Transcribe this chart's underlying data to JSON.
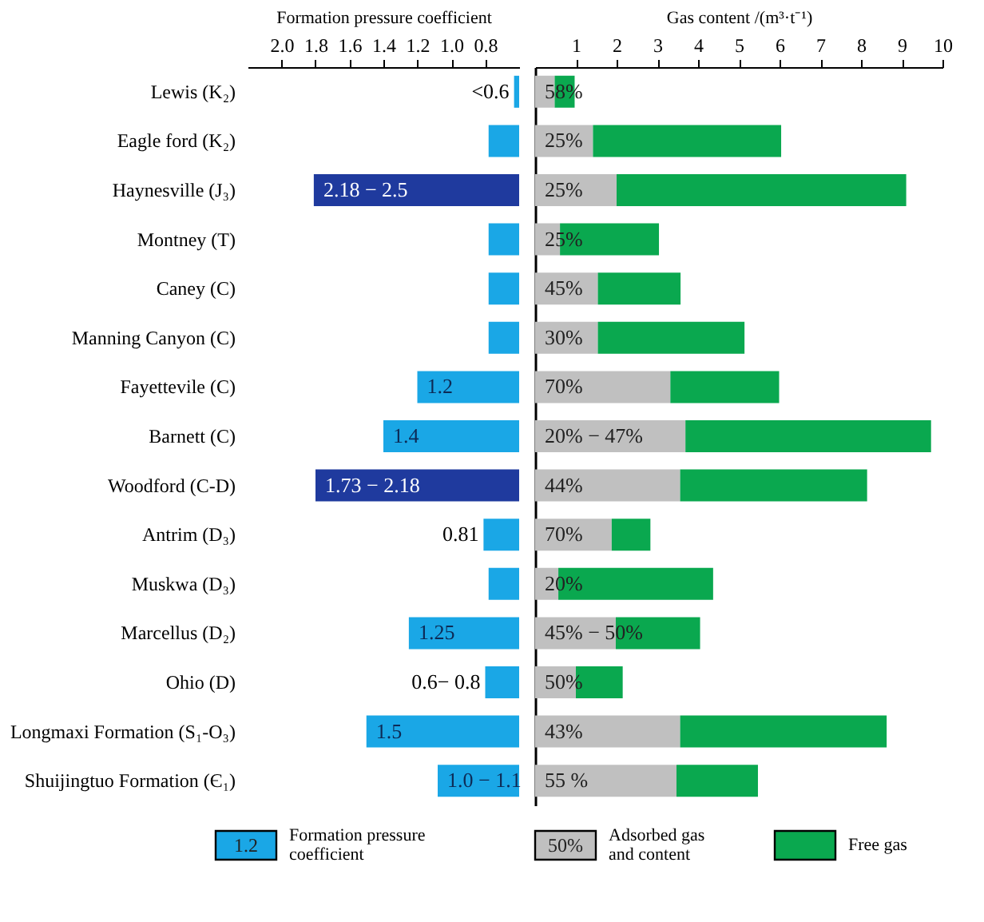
{
  "chart_data": [
    {
      "type": "bar",
      "orientation": "horizontal",
      "xlabel": "Formation pressure coefficient",
      "categories": [
        "Lewis (K₂)",
        "Eagle ford (K₂)",
        "Haynesville (J₃)",
        "Montney (T)",
        "Caney (C)",
        "Manning Canyon (C)",
        "Fayettevile (C)",
        "Barnett (C)",
        "Woodford (C-D)",
        "Antrim (D₃)",
        "Muskwa (D₃)",
        "Marcellus (D₂)",
        "Ohio (D)",
        "Longmaxi Formation (S₁-O₃)",
        "Shuijingtuo Formation (Є₁)"
      ],
      "series": [
        {
          "name": "Formation pressure coefficient",
          "color": "#1aa7e6",
          "colors": [
            "#1aa7e6",
            "#1aa7e6",
            "#1f3a9e",
            "#1aa7e6",
            "#1aa7e6",
            "#1aa7e6",
            "#1aa7e6",
            "#1aa7e6",
            "#1f3a9e",
            "#1aa7e6",
            "#1aa7e6",
            "#1aa7e6",
            "#1aa7e6",
            "#1aa7e6",
            "#1aa7e6"
          ],
          "values": [
            0.63,
            0.78,
            1.81,
            0.78,
            0.78,
            0.78,
            1.2,
            1.4,
            1.8,
            0.81,
            0.78,
            1.25,
            0.8,
            1.5,
            1.08
          ],
          "value_labels": [
            "<0.6",
            null,
            null,
            null,
            null,
            null,
            "1.2",
            "1.4",
            null,
            "0.81",
            null,
            "1.25",
            null,
            "1.5",
            null
          ]
        }
      ],
      "xlim": [
        2.2,
        0.6
      ],
      "xticks": [
        {
          "value": 2,
          "label": "2.0"
        },
        1.8,
        1.6,
        1.4,
        1.2,
        {
          "value": 1,
          "label": "1.0"
        },
        0.8
      ],
      "legend": "bottom",
      "annotations": [
        "1.2",
        {
          "text": "2.18 − 2.5",
          "x": 1.81,
          "y": "Haynesville (J₃)"
        },
        {
          "text": "1.73 − 2.18",
          "x": 1.8,
          "y": "Woodford (C-D)"
        },
        {
          "text": "0.6− 0.8",
          "x": 0.8,
          "y": "Ohio (D)"
        },
        {
          "text": "1.0 − 1.1",
          "x": 1.08,
          "y": "Shuijingtuo Formation (Є₁)"
        }
      ]
    },
    {
      "type": "bar",
      "orientation": "horizontal",
      "stacked": true,
      "xlabel": "Gas content /(m³·t⁻¹)",
      "categories": [
        null,
        null,
        null,
        null,
        null,
        null,
        null,
        null,
        null,
        null,
        null,
        null,
        null,
        null,
        null
      ],
      "series": [
        {
          "name": "Adsorbed gas and content",
          "color": "#c0c0c0",
          "values": [
            0.48,
            1.42,
            2.0,
            0.61,
            1.54,
            1.54,
            3.32,
            3.69,
            3.56,
            1.88,
            0.57,
            1.98,
            1.0,
            3.56,
            3.47
          ]
        },
        {
          "name": "Free gas",
          "color": "#0aa84f",
          "values": [
            0.49,
            4.62,
            7.11,
            2.43,
            2.03,
            3.6,
            2.67,
            6.03,
            4.59,
            0.95,
            3.8,
            2.07,
            1.15,
            5.07,
            2.0
          ]
        }
      ],
      "xlim": [
        0,
        10
      ],
      "xticks": [
        1,
        2,
        3,
        4,
        5,
        6,
        7,
        8,
        9,
        10
      ],
      "legend": "bottom",
      "annotations": [
        "50%",
        "58%",
        "25%",
        "25%",
        "25%",
        "45%",
        "30%",
        "70%",
        "20% − 47%",
        "44%",
        "70%",
        "20%",
        "45% − 50%",
        "50%",
        "43%",
        "55 %"
      ]
    }
  ]
}
